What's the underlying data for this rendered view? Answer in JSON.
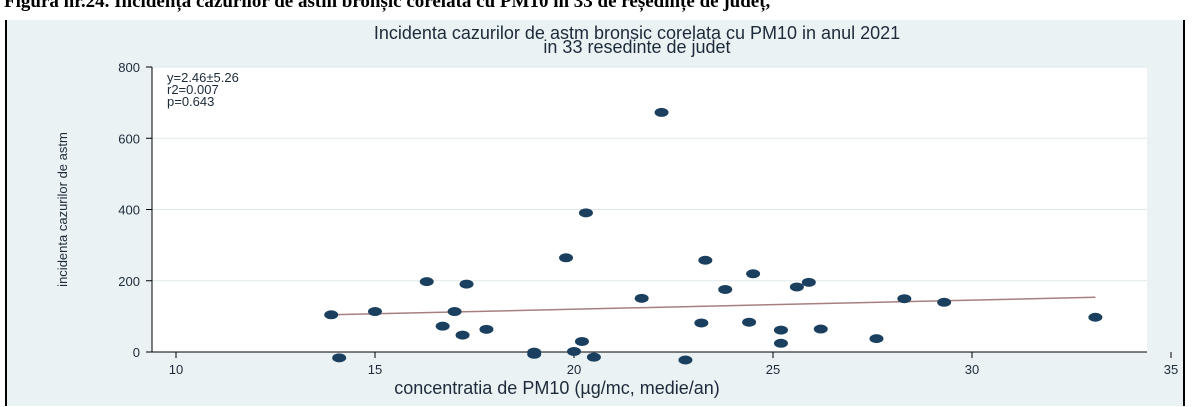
{
  "caption": "Figura nr.24. Incidența cazurilor de astm bronșic corelată cu PM10 in 33 de reședințe de județ,",
  "colors": {
    "panel_background": "#eaf2f3",
    "plot_background": "#ffffff",
    "marker": "#1b3f5e",
    "fit_line": "#a87f80",
    "gridline": "#dfe8ea"
  },
  "chart_data": {
    "type": "scatter",
    "title": "Incidenta cazurilor de astm bronsic corelata cu PM10 in anul 2021",
    "subtitle": "in 33 resedinte de judet",
    "xlabel": "concentratia de PM10 (µg/mc, medie/an)",
    "ylabel": "incidenta cazurilor de astm",
    "xlim": [
      10,
      35
    ],
    "ylim": [
      0,
      800
    ],
    "xticks": [
      10,
      15,
      20,
      25,
      30,
      35
    ],
    "yticks": [
      0,
      200,
      400,
      600,
      800
    ],
    "grid": "horizontal",
    "annotations": [
      "y=2.46±5.26",
      "r2=0.007",
      "p=0.643"
    ],
    "fit_line": {
      "x": [
        13.9,
        33.1
      ],
      "y": [
        127,
        176
      ]
    },
    "points": [
      {
        "x": 13.9,
        "y": 127
      },
      {
        "x": 14.1,
        "y": 6
      },
      {
        "x": 15.0,
        "y": 136
      },
      {
        "x": 16.3,
        "y": 220
      },
      {
        "x": 16.7,
        "y": 95
      },
      {
        "x": 17.0,
        "y": 136
      },
      {
        "x": 17.2,
        "y": 70
      },
      {
        "x": 17.3,
        "y": 213
      },
      {
        "x": 17.8,
        "y": 86
      },
      {
        "x": 19.0,
        "y": 22
      },
      {
        "x": 19.0,
        "y": 16
      },
      {
        "x": 19.8,
        "y": 287
      },
      {
        "x": 20.0,
        "y": 24
      },
      {
        "x": 20.2,
        "y": 52
      },
      {
        "x": 20.3,
        "y": 413
      },
      {
        "x": 20.5,
        "y": 8
      },
      {
        "x": 21.7,
        "y": 173
      },
      {
        "x": 22.2,
        "y": 695
      },
      {
        "x": 22.8,
        "y": 0
      },
      {
        "x": 23.2,
        "y": 104
      },
      {
        "x": 23.3,
        "y": 280
      },
      {
        "x": 23.8,
        "y": 198
      },
      {
        "x": 24.4,
        "y": 106
      },
      {
        "x": 24.5,
        "y": 242
      },
      {
        "x": 25.2,
        "y": 47
      },
      {
        "x": 25.2,
        "y": 84
      },
      {
        "x": 25.6,
        "y": 205
      },
      {
        "x": 25.9,
        "y": 218
      },
      {
        "x": 26.2,
        "y": 87
      },
      {
        "x": 27.6,
        "y": 60
      },
      {
        "x": 28.3,
        "y": 172
      },
      {
        "x": 29.3,
        "y": 162
      },
      {
        "x": 33.1,
        "y": 120
      }
    ]
  }
}
